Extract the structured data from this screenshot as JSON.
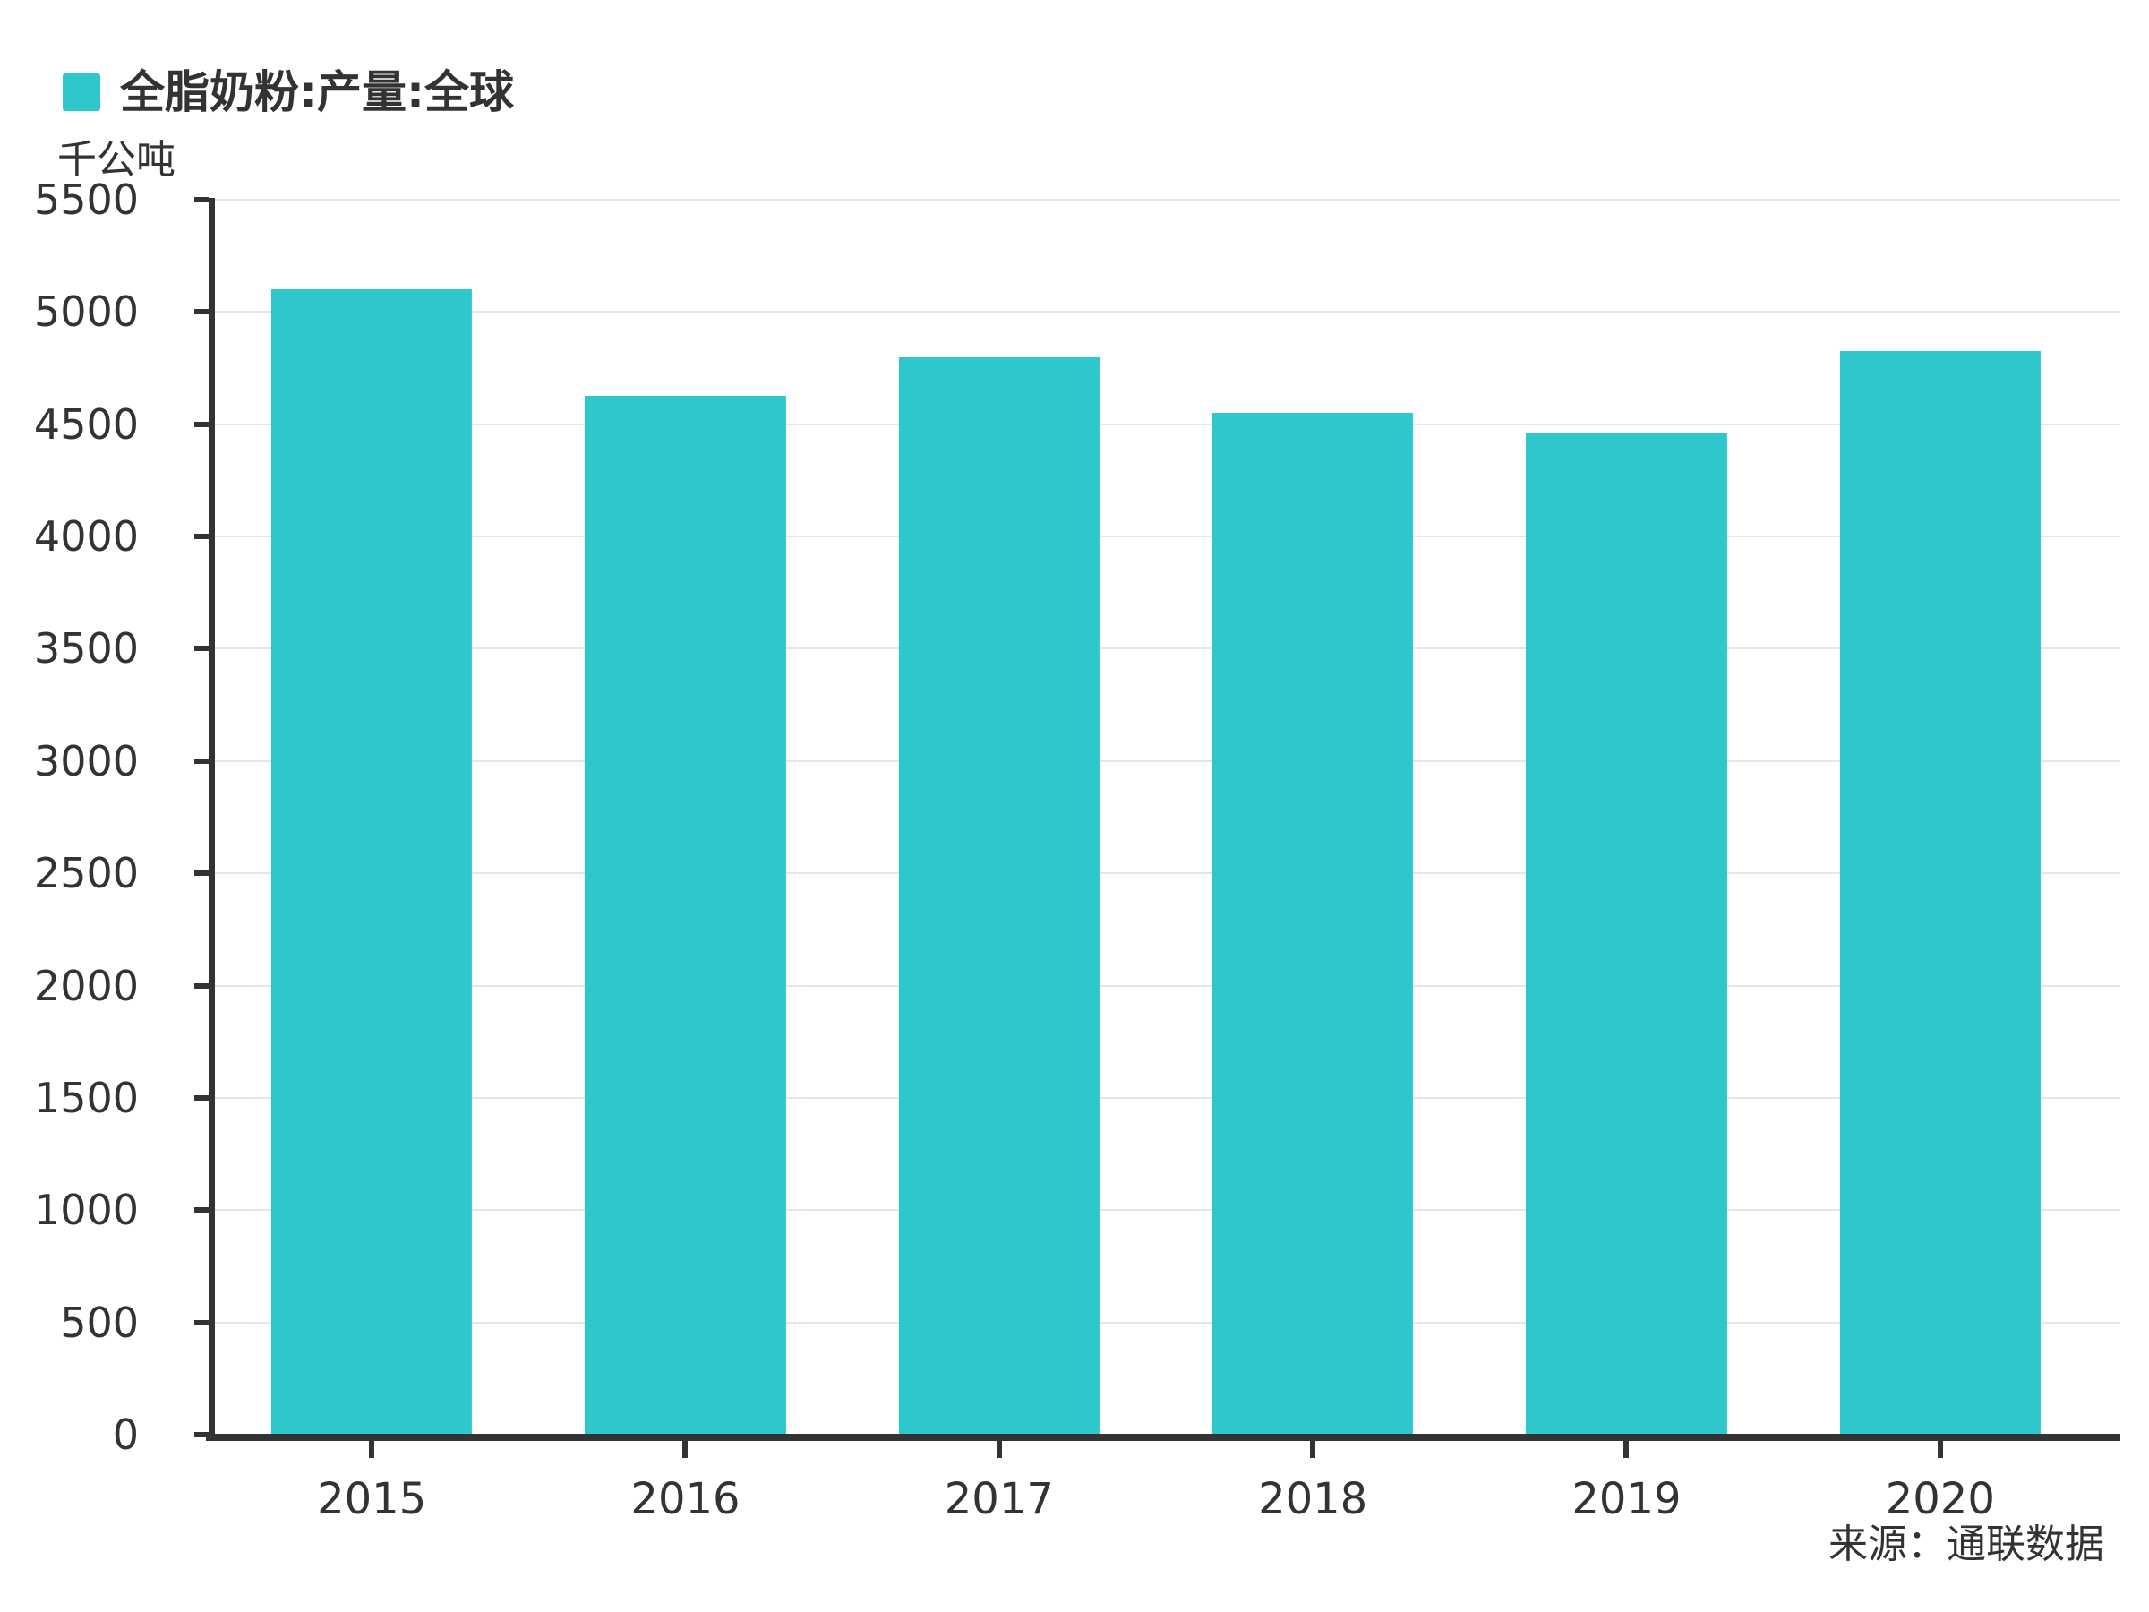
{
  "legend": {
    "label": "全脂奶粉:产量:全球",
    "swatch_color": "#2DC7CC"
  },
  "unit_label": "千公吨",
  "source_label": "来源：通联数据",
  "colors": {
    "bar": "#2DC7CC",
    "axis": "#333333",
    "grid": "#e6e6e6",
    "text": "#333333",
    "background": "#ffffff"
  },
  "chart_data": {
    "type": "bar",
    "title": "全脂奶粉:产量:全球",
    "ylabel": "千公吨",
    "categories": [
      "2015",
      "2016",
      "2017",
      "2018",
      "2019",
      "2020"
    ],
    "values": [
      5100,
      4625,
      4800,
      4550,
      4460,
      4825
    ],
    "series": [
      {
        "name": "全脂奶粉:产量:全球",
        "values": [
          5100,
          4625,
          4800,
          4550,
          4460,
          4825
        ]
      }
    ],
    "ylim": [
      0,
      5500
    ],
    "ytick_step": 500,
    "yticks": [
      0,
      500,
      1000,
      1500,
      2000,
      2500,
      3000,
      3500,
      4000,
      4500,
      5000,
      5500
    ],
    "grid": true,
    "legend_position": "top-left",
    "source": "来源：通联数据"
  }
}
